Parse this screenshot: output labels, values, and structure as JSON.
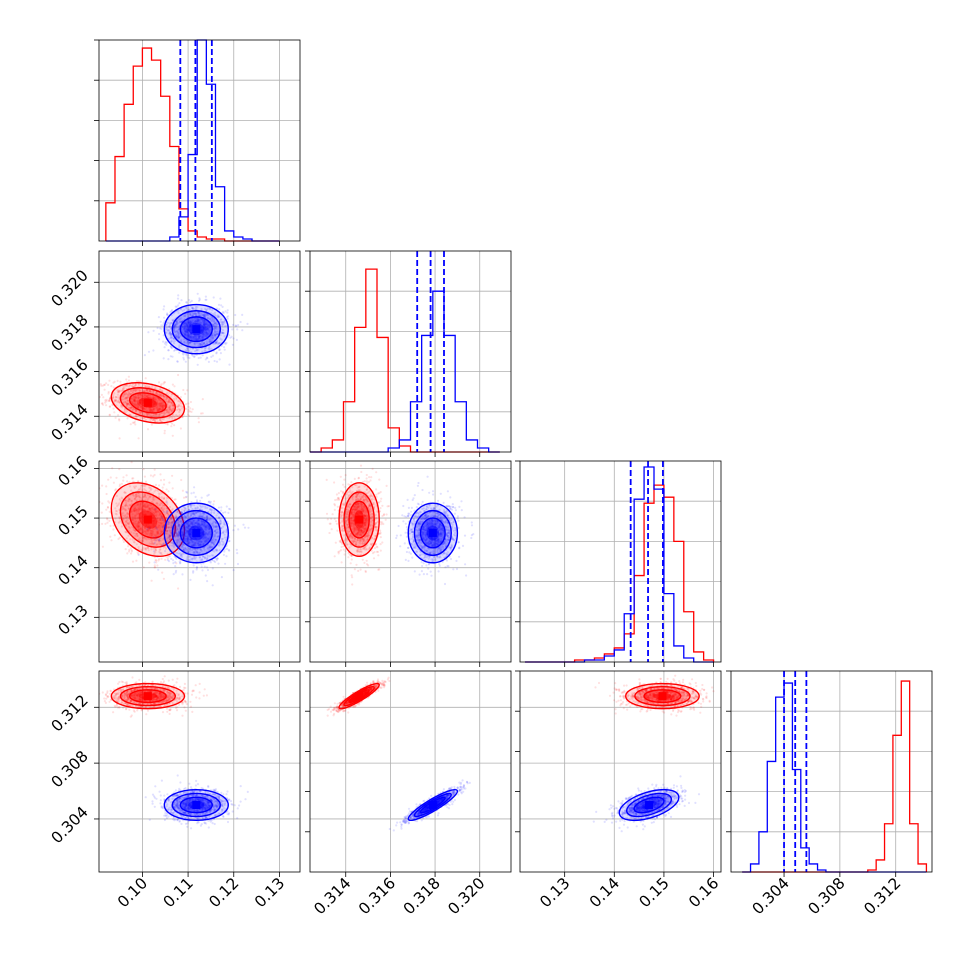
{
  "chart_data": {
    "type": "corner",
    "colors": {
      "red": "#ff0000",
      "blue": "#0000ff"
    },
    "grid": true,
    "params": [
      {
        "range": [
          0.0905,
          0.1345
        ],
        "ticks": [
          0.1,
          0.11,
          0.12,
          0.13
        ],
        "tick_labels": [
          "0.10",
          "0.11",
          "0.12",
          "0.13"
        ]
      },
      {
        "range": [
          0.3124,
          0.3214
        ],
        "ticks": [
          0.314,
          0.316,
          0.318,
          0.32
        ],
        "tick_labels": [
          "0.314",
          "0.316",
          "0.318",
          "0.320"
        ]
      },
      {
        "range": [
          0.121,
          0.1615
        ],
        "ticks": [
          0.13,
          0.14,
          0.15,
          0.16
        ],
        "tick_labels": [
          "0.13",
          "0.14",
          "0.15",
          "0.16"
        ]
      },
      {
        "range": [
          0.3002,
          0.3146
        ],
        "ticks": [
          0.304,
          0.308,
          0.312
        ],
        "tick_labels": [
          "0.304",
          "0.308",
          "0.312"
        ]
      }
    ],
    "series": {
      "red": {
        "mean": [
          0.1012,
          0.3146,
          0.1497,
          0.3128
        ],
        "sd": [
          0.004,
          0.00045,
          0.0037,
          0.00045
        ]
      },
      "blue": {
        "mean": [
          0.1118,
          0.3179,
          0.147,
          0.305
        ],
        "sd": [
          0.0035,
          0.00055,
          0.003,
          0.00055
        ]
      }
    },
    "correlations": {
      "0-1": {
        "red": -0.3,
        "blue": 0.0
      },
      "0-2": {
        "red": -0.3,
        "blue": 0.0
      },
      "0-3": {
        "red": 0.0,
        "blue": 0.0
      },
      "1-2": {
        "red": 0.0,
        "blue": 0.0
      },
      "1-3": {
        "red": 0.9,
        "blue": 0.9
      },
      "2-3": {
        "red": 0.0,
        "blue": 0.5
      }
    },
    "quantile_lines": [
      [
        0.1083,
        0.1116,
        0.1152
      ],
      [
        0.3172,
        0.3178,
        0.3184
      ],
      [
        0.1433,
        0.1468,
        0.1498
      ],
      [
        0.304,
        0.3048,
        0.3056
      ]
    ],
    "histograms": [
      {
        "bin_edges": [
          0.092,
          0.094,
          0.096,
          0.098,
          0.1,
          0.102,
          0.104,
          0.106,
          0.108,
          0.11,
          0.112,
          0.114,
          0.116,
          0.118,
          0.12,
          0.122,
          0.124,
          0.126,
          0.128,
          0.13
        ],
        "red": [
          0.19,
          0.42,
          0.68,
          0.87,
          0.96,
          0.9,
          0.72,
          0.47,
          0.16,
          0.05,
          0.02,
          0.01,
          0.01,
          0.0,
          0.0,
          0.0,
          0.0,
          0.0,
          0.0
        ],
        "blue": [
          0.0,
          0.0,
          0.0,
          0.0,
          0.0,
          0.0,
          0.0,
          0.02,
          0.12,
          0.43,
          1.0,
          0.78,
          0.27,
          0.05,
          0.02,
          0.01,
          0.0,
          0.0,
          0.0
        ]
      },
      {
        "bin_edges": [
          0.3124,
          0.3129,
          0.3134,
          0.3139,
          0.3144,
          0.3149,
          0.3154,
          0.3159,
          0.3164,
          0.3169,
          0.3174,
          0.3179,
          0.3184,
          0.3189,
          0.3194,
          0.3199,
          0.3204,
          0.3209
        ],
        "red": [
          0.0,
          0.02,
          0.06,
          0.25,
          0.62,
          0.91,
          0.57,
          0.12,
          0.03,
          0.0,
          0.0,
          0.0,
          0.0,
          0.0,
          0.0,
          0.0,
          0.0
        ],
        "blue": [
          0.0,
          0.0,
          0.0,
          0.0,
          0.0,
          0.0,
          0.0,
          0.02,
          0.06,
          0.25,
          0.58,
          0.8,
          0.58,
          0.25,
          0.06,
          0.02,
          0.0
        ]
      },
      {
        "bin_edges": [
          0.122,
          0.124,
          0.126,
          0.128,
          0.13,
          0.132,
          0.134,
          0.136,
          0.138,
          0.14,
          0.142,
          0.144,
          0.146,
          0.148,
          0.15,
          0.152,
          0.154,
          0.156,
          0.158,
          0.16
        ],
        "red": [
          0.0,
          0.0,
          0.0,
          0.0,
          0.0,
          0.01,
          0.01,
          0.02,
          0.04,
          0.07,
          0.14,
          0.43,
          0.79,
          0.88,
          0.82,
          0.6,
          0.25,
          0.05,
          0.01
        ],
        "blue": [
          0.0,
          0.0,
          0.0,
          0.0,
          0.0,
          0.0,
          0.01,
          0.01,
          0.03,
          0.06,
          0.24,
          0.81,
          0.97,
          0.86,
          0.34,
          0.08,
          0.02,
          0.0,
          0.0
        ]
      },
      {
        "bin_edges": [
          0.301,
          0.3016,
          0.3022,
          0.3028,
          0.3034,
          0.304,
          0.3046,
          0.3052,
          0.3058,
          0.3064,
          0.307,
          0.3076,
          0.3082,
          0.3088,
          0.3094,
          0.31,
          0.3106,
          0.3112,
          0.3118,
          0.3124,
          0.313,
          0.3136,
          0.3142
        ],
        "red": [
          0.0,
          0.0,
          0.0,
          0.0,
          0.0,
          0.0,
          0.0,
          0.0,
          0.0,
          0.0,
          0.0,
          0.0,
          0.0,
          0.0,
          0.0,
          0.01,
          0.06,
          0.24,
          0.68,
          0.95,
          0.24,
          0.04
        ],
        "blue": [
          0.0,
          0.04,
          0.2,
          0.55,
          0.87,
          0.94,
          0.51,
          0.12,
          0.04,
          0.01,
          0.0,
          0.0,
          0.0,
          0.0,
          0.0,
          0.0,
          0.0,
          0.0,
          0.0,
          0.0,
          0.0,
          0.0
        ]
      }
    ]
  }
}
